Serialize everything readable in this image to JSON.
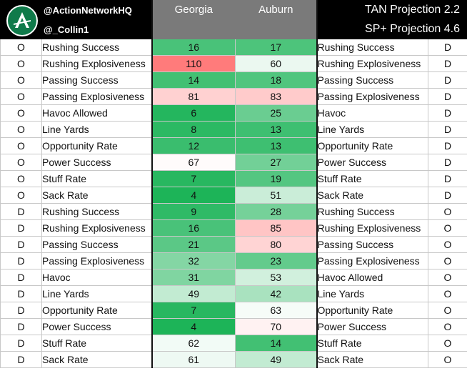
{
  "header": {
    "handle_primary": "@ActionNetworkHQ",
    "handle_secondary": "@_Collin1",
    "team_left": "Georgia",
    "team_right": "Auburn",
    "projection_1": "TAN Projection  2.2",
    "projection_2": "SP+ Projection  4.6",
    "logo_icon": "action-network-logo-icon"
  },
  "colors": {
    "header_bg": "#000000",
    "team_header_bg": "#7a7a7a",
    "scale_strong_green": "#12b050",
    "scale_weak_red": "#ff4040"
  },
  "rows": [
    {
      "side_left": "O",
      "metric_left": "Rushing Success",
      "georgia": "16",
      "auburn": "17",
      "metric_right": "Rushing Success",
      "side_right": "D"
    },
    {
      "side_left": "O",
      "metric_left": "Rushing Explosiveness",
      "georgia": "110",
      "auburn": "60",
      "metric_right": "Rushing Explosiveness",
      "side_right": "D"
    },
    {
      "side_left": "O",
      "metric_left": "Passing Success",
      "georgia": "14",
      "auburn": "18",
      "metric_right": "Passing Success",
      "side_right": "D"
    },
    {
      "side_left": "O",
      "metric_left": "Passing Explosiveness",
      "georgia": "81",
      "auburn": "83",
      "metric_right": "Passing Explosiveness",
      "side_right": "D"
    },
    {
      "side_left": "O",
      "metric_left": "Havoc Allowed",
      "georgia": "6",
      "auburn": "25",
      "metric_right": "Havoc",
      "side_right": "D"
    },
    {
      "side_left": "O",
      "metric_left": "Line Yards",
      "georgia": "8",
      "auburn": "13",
      "metric_right": "Line Yards",
      "side_right": "D"
    },
    {
      "side_left": "O",
      "metric_left": "Opportunity Rate",
      "georgia": "12",
      "auburn": "13",
      "metric_right": "Opportunity Rate",
      "side_right": "D"
    },
    {
      "side_left": "O",
      "metric_left": "Power Success",
      "georgia": "67",
      "auburn": "27",
      "metric_right": "Power Success",
      "side_right": "D"
    },
    {
      "side_left": "O",
      "metric_left": "Stuff Rate",
      "georgia": "7",
      "auburn": "19",
      "metric_right": "Stuff Rate",
      "side_right": "D"
    },
    {
      "side_left": "O",
      "metric_left": "Sack Rate",
      "georgia": "4",
      "auburn": "51",
      "metric_right": "Sack Rate",
      "side_right": "D"
    },
    {
      "side_left": "D",
      "metric_left": "Rushing Success",
      "georgia": "9",
      "auburn": "28",
      "metric_right": "Rushing Success",
      "side_right": "O"
    },
    {
      "side_left": "D",
      "metric_left": "Rushing Explosiveness",
      "georgia": "16",
      "auburn": "85",
      "metric_right": "Rushing Explosiveness",
      "side_right": "O"
    },
    {
      "side_left": "D",
      "metric_left": "Passing Success",
      "georgia": "21",
      "auburn": "80",
      "metric_right": "Passing Success",
      "side_right": "O"
    },
    {
      "side_left": "D",
      "metric_left": "Passing Explosiveness",
      "georgia": "32",
      "auburn": "23",
      "metric_right": "Passing Explosiveness",
      "side_right": "O"
    },
    {
      "side_left": "D",
      "metric_left": "Havoc",
      "georgia": "31",
      "auburn": "53",
      "metric_right": "Havoc Allowed",
      "side_right": "O"
    },
    {
      "side_left": "D",
      "metric_left": "Line Yards",
      "georgia": "49",
      "auburn": "42",
      "metric_right": "Line Yards",
      "side_right": "O"
    },
    {
      "side_left": "D",
      "metric_left": "Opportunity Rate",
      "georgia": "7",
      "auburn": "63",
      "metric_right": "Opportunity Rate",
      "side_right": "O"
    },
    {
      "side_left": "D",
      "metric_left": "Power Success",
      "georgia": "4",
      "auburn": "70",
      "metric_right": "Power Success",
      "side_right": "O"
    },
    {
      "side_left": "D",
      "metric_left": "Stuff Rate",
      "georgia": "62",
      "auburn": "14",
      "metric_right": "Stuff Rate",
      "side_right": "O"
    },
    {
      "side_left": "D",
      "metric_left": "Sack Rate",
      "georgia": "61",
      "auburn": "49",
      "metric_right": "Sack Rate",
      "side_right": "O"
    }
  ]
}
